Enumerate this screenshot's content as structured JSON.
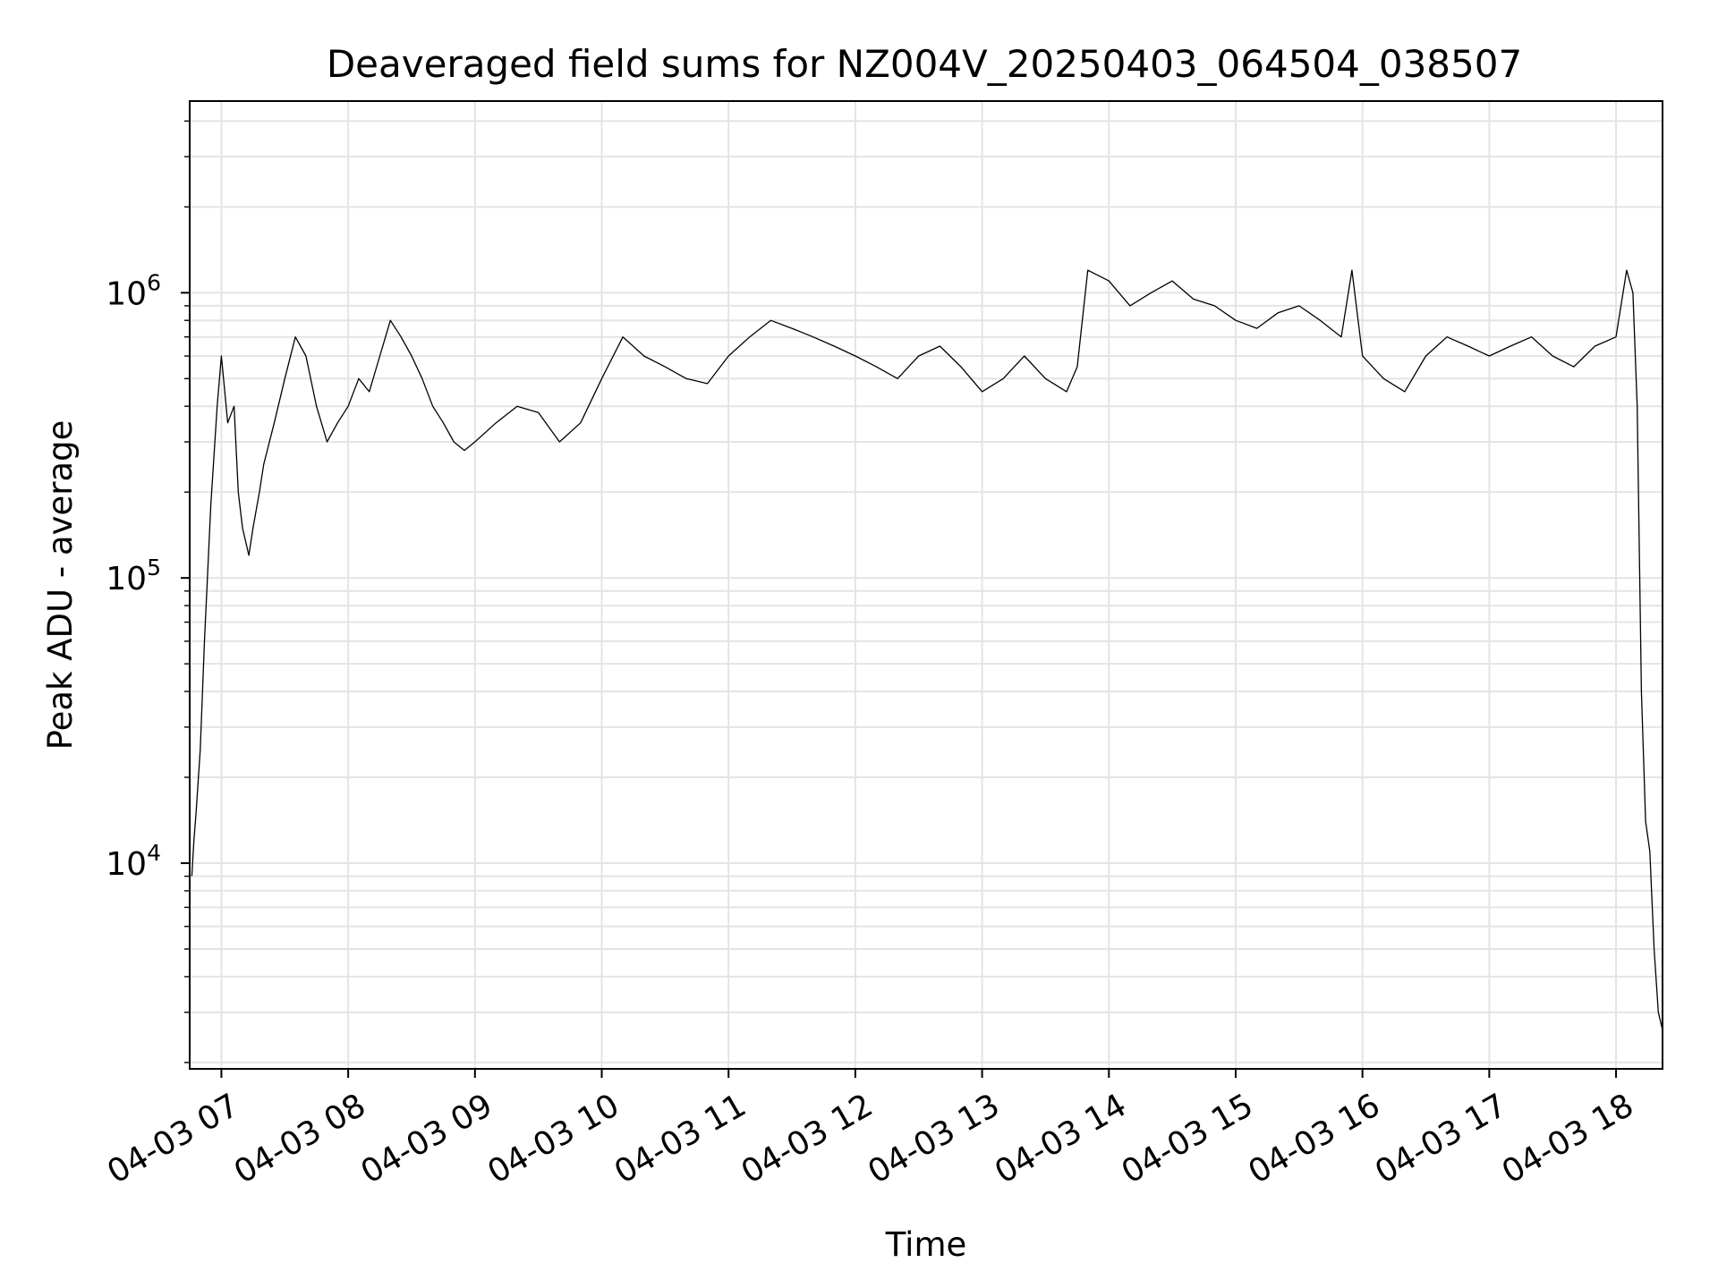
{
  "chart_data": {
    "type": "line",
    "title": "Deaveraged field sums for NZ004V_20250403_064504_038507",
    "xlabel": "Time",
    "ylabel": "Peak ADU - average",
    "x_type": "datetime",
    "y_scale": "log",
    "xlim": [
      "04-03 06:45",
      "04-03 18:22"
    ],
    "ylim": [
      1900,
      4700000
    ],
    "grid": true,
    "x_ticks": [
      {
        "time": "04-03 07:00",
        "label": "04-03 07"
      },
      {
        "time": "04-03 08:00",
        "label": "04-03 08"
      },
      {
        "time": "04-03 09:00",
        "label": "04-03 09"
      },
      {
        "time": "04-03 10:00",
        "label": "04-03 10"
      },
      {
        "time": "04-03 11:00",
        "label": "04-03 11"
      },
      {
        "time": "04-03 12:00",
        "label": "04-03 12"
      },
      {
        "time": "04-03 13:00",
        "label": "04-03 13"
      },
      {
        "time": "04-03 14:00",
        "label": "04-03 14"
      },
      {
        "time": "04-03 15:00",
        "label": "04-03 15"
      },
      {
        "time": "04-03 16:00",
        "label": "04-03 16"
      },
      {
        "time": "04-03 17:00",
        "label": "04-03 17"
      },
      {
        "time": "04-03 18:00",
        "label": "04-03 18"
      }
    ],
    "y_ticks": [
      {
        "value": 10000,
        "base": "10",
        "exp": "4"
      },
      {
        "value": 100000,
        "base": "10",
        "exp": "5"
      },
      {
        "value": 1000000,
        "base": "10",
        "exp": "6"
      }
    ],
    "series": [
      {
        "color": "#000000",
        "x": [
          "04-03 06:46",
          "04-03 06:47",
          "04-03 06:48",
          "04-03 06:50",
          "04-03 06:52",
          "04-03 06:55",
          "04-03 06:58",
          "04-03 07:00",
          "04-03 07:03",
          "04-03 07:06",
          "04-03 07:08",
          "04-03 07:10",
          "04-03 07:13",
          "04-03 07:15",
          "04-03 07:18",
          "04-03 07:20",
          "04-03 07:25",
          "04-03 07:30",
          "04-03 07:35",
          "04-03 07:40",
          "04-03 07:45",
          "04-03 07:50",
          "04-03 07:55",
          "04-03 08:00",
          "04-03 08:05",
          "04-03 08:10",
          "04-03 08:15",
          "04-03 08:20",
          "04-03 08:25",
          "04-03 08:30",
          "04-03 08:35",
          "04-03 08:40",
          "04-03 08:45",
          "04-03 08:50",
          "04-03 08:55",
          "04-03 09:00",
          "04-03 09:10",
          "04-03 09:20",
          "04-03 09:30",
          "04-03 09:40",
          "04-03 09:50",
          "04-03 10:00",
          "04-03 10:10",
          "04-03 10:20",
          "04-03 10:30",
          "04-03 10:40",
          "04-03 10:50",
          "04-03 11:00",
          "04-03 11:10",
          "04-03 11:20",
          "04-03 11:30",
          "04-03 11:40",
          "04-03 11:50",
          "04-03 12:00",
          "04-03 12:10",
          "04-03 12:20",
          "04-03 12:30",
          "04-03 12:40",
          "04-03 12:50",
          "04-03 13:00",
          "04-03 13:10",
          "04-03 13:20",
          "04-03 13:30",
          "04-03 13:40",
          "04-03 13:45",
          "04-03 13:50",
          "04-03 14:00",
          "04-03 14:10",
          "04-03 14:20",
          "04-03 14:30",
          "04-03 14:40",
          "04-03 14:50",
          "04-03 15:00",
          "04-03 15:10",
          "04-03 15:20",
          "04-03 15:30",
          "04-03 15:40",
          "04-03 15:50",
          "04-03 15:55",
          "04-03 16:00",
          "04-03 16:10",
          "04-03 16:20",
          "04-03 16:30",
          "04-03 16:40",
          "04-03 16:50",
          "04-03 17:00",
          "04-03 17:10",
          "04-03 17:20",
          "04-03 17:30",
          "04-03 17:40",
          "04-03 17:50",
          "04-03 18:00",
          "04-03 18:05",
          "04-03 18:08",
          "04-03 18:10",
          "04-03 18:12",
          "04-03 18:14",
          "04-03 18:16",
          "04-03 18:18",
          "04-03 18:20",
          "04-03 18:22"
        ],
        "y": [
          9000,
          12000,
          15000,
          25000,
          60000,
          180000,
          400000,
          600000,
          350000,
          400000,
          200000,
          150000,
          120000,
          150000,
          200000,
          250000,
          350000,
          500000,
          700000,
          600000,
          400000,
          300000,
          350000,
          400000,
          500000,
          450000,
          600000,
          800000,
          700000,
          600000,
          500000,
          400000,
          350000,
          300000,
          280000,
          300000,
          350000,
          400000,
          380000,
          300000,
          350000,
          500000,
          700000,
          600000,
          550000,
          500000,
          480000,
          600000,
          700000,
          800000,
          750000,
          700000,
          650000,
          600000,
          550000,
          500000,
          600000,
          650000,
          550000,
          450000,
          500000,
          600000,
          500000,
          450000,
          550000,
          1200000,
          1100000,
          900000,
          1000000,
          1100000,
          950000,
          900000,
          800000,
          750000,
          850000,
          900000,
          800000,
          700000,
          1200000,
          600000,
          500000,
          450000,
          600000,
          700000,
          650000,
          600000,
          650000,
          700000,
          600000,
          550000,
          650000,
          700000,
          1200000,
          1000000,
          400000,
          40000,
          14000,
          11000,
          5000,
          3000,
          2600
        ]
      }
    ]
  }
}
